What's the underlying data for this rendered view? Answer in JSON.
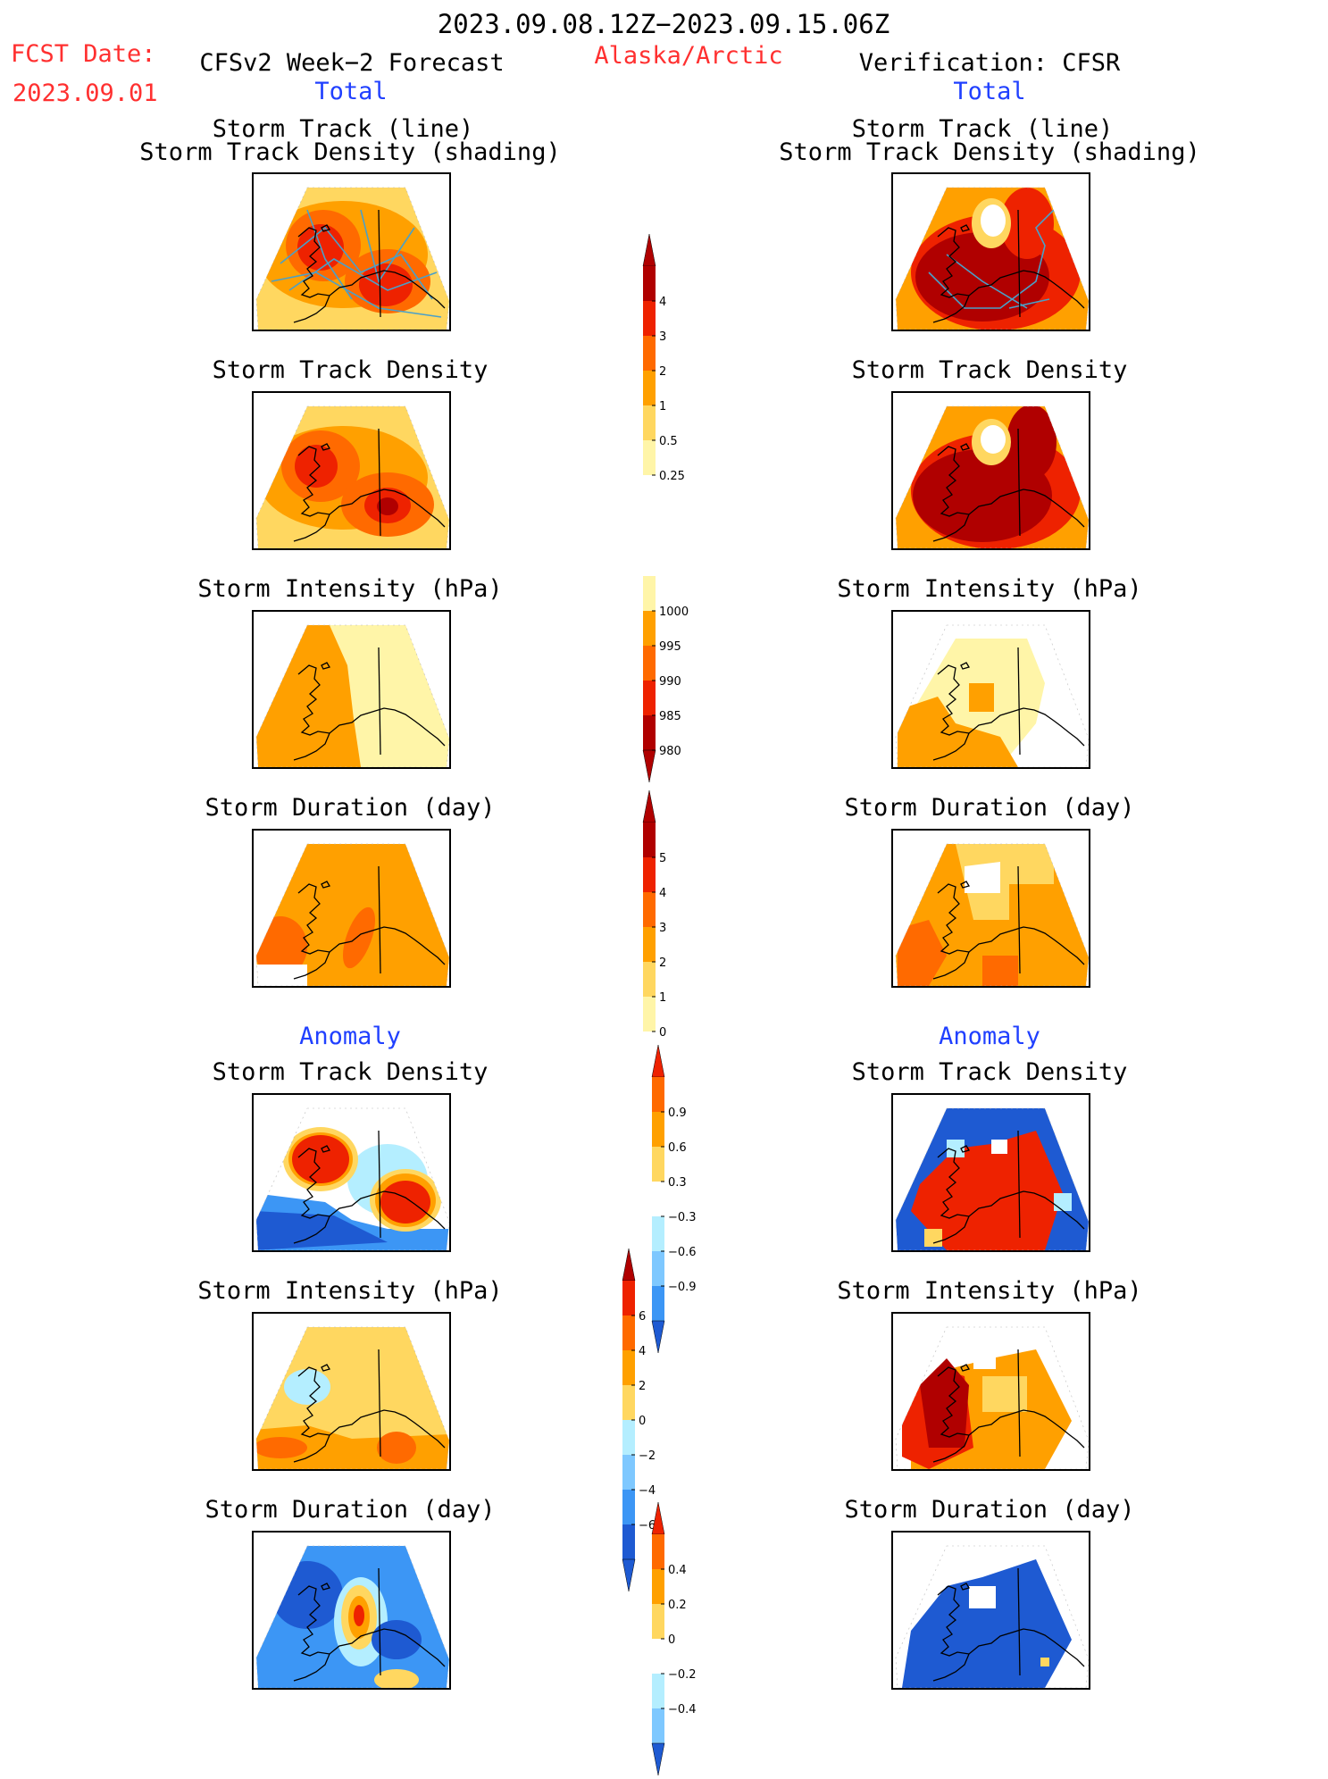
{
  "header": {
    "period": "2023.09.08.12Z−2023.09.15.06Z",
    "region": "Alaska/Arctic",
    "fcst_label": "FCST Date:",
    "fcst_date": "2023.09.01",
    "left_title": "CFSv2 Week−2 Forecast",
    "right_title": "Verification: CFSR",
    "total_label": "Total",
    "anomaly_label": "Anomaly"
  },
  "panel_titles": {
    "track_line": "Storm Track (line)",
    "track_shading": "Storm Track Density (shading)",
    "density": "Storm Track Density",
    "intensity": "Storm Intensity (hPa)",
    "duration": "Storm Duration (day)"
  },
  "colors": {
    "c_pale": "#fff5a8",
    "c_yellow": "#ffd760",
    "c_orange": "#ffa000",
    "c_dorange": "#ff6a00",
    "c_red": "#ee2200",
    "c_dred": "#b00000",
    "c_lblue": "#b4eeff",
    "c_mblue": "#7ec8ff",
    "c_blue": "#3c96f5",
    "c_dblue": "#1e5ad2",
    "track_line": "#4aa0c8"
  },
  "chart_data": [
    {
      "type": "heatmap",
      "title": "Storm Track (line) / Storm Track Density (shading)",
      "source": "CFSv2 Week-2 Forecast",
      "region": "Alaska/Arctic",
      "colorbar": [
        0.25,
        0.5,
        1,
        2,
        3,
        4
      ]
    },
    {
      "type": "heatmap",
      "title": "Storm Track Density",
      "source": "CFSv2 Week-2 Forecast",
      "colorbar": [
        0.25,
        0.5,
        1,
        2,
        3,
        4
      ]
    },
    {
      "type": "heatmap",
      "title": "Storm Intensity (hPa)",
      "source": "CFSv2 Week-2 Forecast",
      "colorbar": [
        1000,
        995,
        990,
        985,
        980
      ]
    },
    {
      "type": "heatmap",
      "title": "Storm Duration (day)",
      "source": "CFSv2 Week-2 Forecast",
      "colorbar": [
        0,
        1,
        2,
        3,
        4,
        5
      ]
    },
    {
      "type": "heatmap",
      "title": "Storm Track Density",
      "source": "CFSv2 Week-2 Forecast",
      "field": "Anomaly",
      "colorbar": [
        0.9,
        0.6,
        0.3,
        -0.3,
        -0.6,
        -0.9
      ]
    },
    {
      "type": "heatmap",
      "title": "Storm Intensity (hPa)",
      "source": "CFSv2 Week-2 Forecast",
      "field": "Anomaly",
      "colorbar": [
        6,
        4,
        2,
        0,
        -2,
        -4,
        -6
      ]
    },
    {
      "type": "heatmap",
      "title": "Storm Duration (day)",
      "source": "CFSv2 Week-2 Forecast",
      "field": "Anomaly",
      "colorbar": [
        0.4,
        0.2,
        0,
        -0.2,
        -0.4
      ]
    },
    {
      "type": "heatmap",
      "title": "Storm Track (line) / Storm Track Density (shading)",
      "source": "Verification: CFSR"
    },
    {
      "type": "heatmap",
      "title": "Storm Track Density",
      "source": "Verification: CFSR"
    },
    {
      "type": "heatmap",
      "title": "Storm Intensity (hPa)",
      "source": "Verification: CFSR"
    },
    {
      "type": "heatmap",
      "title": "Storm Duration (day)",
      "source": "Verification: CFSR"
    },
    {
      "type": "heatmap",
      "title": "Storm Track Density",
      "source": "Verification: CFSR",
      "field": "Anomaly"
    },
    {
      "type": "heatmap",
      "title": "Storm Intensity (hPa)",
      "source": "Verification: CFSR",
      "field": "Anomaly"
    },
    {
      "type": "heatmap",
      "title": "Storm Duration (day)",
      "source": "Verification: CFSR",
      "field": "Anomaly"
    }
  ],
  "colorbars": {
    "density": {
      "labels": [
        "4",
        "3",
        "2",
        "1",
        "0.5",
        "0.25"
      ],
      "colors": [
        "#b00000",
        "#ee2200",
        "#ff6a00",
        "#ffa000",
        "#ffd760",
        "#fff5a8"
      ],
      "top_arrow": "#b00000"
    },
    "intensity": {
      "labels": [
        "1000",
        "995",
        "990",
        "985",
        "980"
      ],
      "colors": [
        "#fff5a8",
        "#ffa000",
        "#ff6a00",
        "#ee2200",
        "#b00000"
      ],
      "bottom_arrow": "#b00000"
    },
    "duration": {
      "labels": [
        "5",
        "4",
        "3",
        "2",
        "1",
        "0"
      ],
      "colors": [
        "#b00000",
        "#ee2200",
        "#ff6a00",
        "#ffa000",
        "#ffd760",
        "#fff5a8"
      ],
      "top_arrow": "#b00000"
    },
    "anom_density": {
      "labels": [
        "0.9",
        "0.6",
        "0.3",
        "−0.3",
        "−0.6",
        "−0.9"
      ],
      "colors": [
        "#ff6a00",
        "#ffa000",
        "#ffd760",
        "#ffffff",
        "#b4eeff",
        "#7ec8ff",
        "#3c96f5"
      ],
      "top_arrow": "#ee2200",
      "bottom_arrow": "#1e5ad2"
    },
    "anom_intensity": {
      "labels": [
        "6",
        "4",
        "2",
        "0",
        "−2",
        "−4",
        "−6"
      ],
      "colors": [
        "#ee2200",
        "#ff6a00",
        "#ffa000",
        "#ffd760",
        "#b4eeff",
        "#7ec8ff",
        "#3c96f5",
        "#1e5ad2"
      ],
      "top_arrow": "#b00000",
      "bottom_arrow": "#1e5ad2"
    },
    "anom_duration": {
      "labels": [
        "0.4",
        "0.2",
        "0",
        "−0.2",
        "−0.4"
      ],
      "colors": [
        "#ff6a00",
        "#ffa000",
        "#ffd760",
        "#ffffff",
        "#b4eeff",
        "#7ec8ff"
      ],
      "top_arrow": "#ee2200",
      "bottom_arrow": "#1e5ad2"
    }
  }
}
